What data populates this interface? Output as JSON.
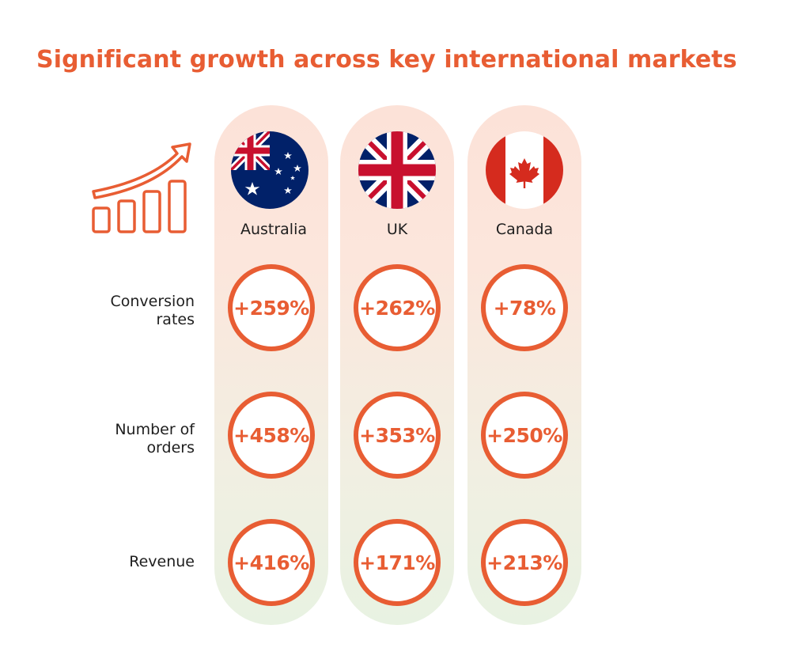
{
  "title": "Significant growth across key international markets",
  "colors": {
    "accent": "#e85d33",
    "text": "#1e1e1e"
  },
  "icon": "growth-chart-arrow-icon",
  "chart_data": {
    "type": "table",
    "title": "Significant growth across key international markets",
    "columns": [
      "Australia",
      "UK",
      "Canada"
    ],
    "rows": [
      {
        "label": "Conversion rates",
        "label_lines": [
          "Conversion",
          "rates"
        ],
        "values": [
          "+259%",
          "+262%",
          "+78%"
        ],
        "numeric": [
          259,
          262,
          78
        ]
      },
      {
        "label": "Number of orders",
        "label_lines": [
          "Number of",
          "orders"
        ],
        "values": [
          "+458%",
          "+353%",
          "+250%"
        ],
        "numeric": [
          458,
          353,
          250
        ]
      },
      {
        "label": "Revenue",
        "label_lines": [
          "Revenue"
        ],
        "values": [
          "+416%",
          "+171%",
          "+213%"
        ],
        "numeric": [
          416,
          171,
          213
        ]
      }
    ]
  }
}
